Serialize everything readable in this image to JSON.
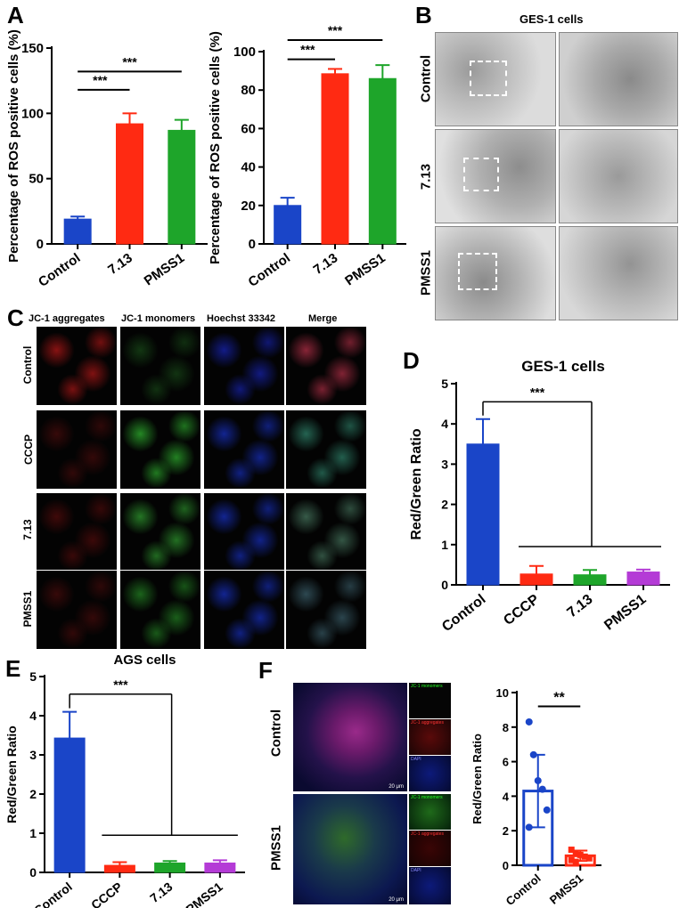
{
  "panels": {
    "A": "A",
    "B": "B",
    "C": "C",
    "D": "D",
    "E": "E",
    "F": "F"
  },
  "colors": {
    "blue": "#1a45c8",
    "red": "#ff2a12",
    "green": "#1ea52a",
    "purple": "#b43bd6"
  },
  "sig": {
    "three": "***",
    "two": "**"
  },
  "chart_data": [
    {
      "id": "A-left",
      "type": "bar",
      "categories": [
        "Control",
        "7.13",
        "PMSS1"
      ],
      "values": [
        19,
        92,
        87
      ],
      "errors": [
        2,
        8,
        8
      ],
      "ylabel": "Percentage of ROS positive cells (%)",
      "ylim": [
        0,
        150
      ],
      "yticks": [
        0,
        50,
        100,
        150
      ],
      "significance": [
        {
          "from": 0,
          "to": 1,
          "label": "***"
        },
        {
          "from": 0,
          "to": 2,
          "label": "***"
        }
      ]
    },
    {
      "id": "A-right",
      "type": "bar",
      "categories": [
        "Control",
        "7.13",
        "PMSS1"
      ],
      "values": [
        20,
        88.5,
        86
      ],
      "errors": [
        4,
        2.5,
        7
      ],
      "ylabel": "Percentage of ROS positive cells (%)",
      "ylim": [
        0,
        100
      ],
      "yticks": [
        0,
        20,
        40,
        60,
        80,
        100
      ],
      "significance": [
        {
          "from": 0,
          "to": 1,
          "label": "***"
        },
        {
          "from": 0,
          "to": 2,
          "label": "***"
        }
      ]
    },
    {
      "id": "D",
      "type": "bar",
      "title": "GES-1 cells",
      "categories": [
        "Control",
        "CCCP",
        "7.13",
        "PMSS1"
      ],
      "values": [
        3.5,
        0.27,
        0.25,
        0.32
      ],
      "errors": [
        0.62,
        0.2,
        0.12,
        0.06
      ],
      "ylabel": "Red/Green Ratio",
      "ylim": [
        0,
        5
      ],
      "yticks": [
        0,
        1,
        2,
        3,
        4,
        5
      ],
      "significance": [
        {
          "label": "***"
        }
      ]
    },
    {
      "id": "E",
      "type": "bar",
      "title": "AGS cells",
      "categories": [
        "Control",
        "CCCP",
        "7.13",
        "PMSS1"
      ],
      "values": [
        3.43,
        0.18,
        0.24,
        0.24
      ],
      "errors": [
        0.67,
        0.08,
        0.05,
        0.07
      ],
      "ylabel": "Red/Green Ratio",
      "ylim": [
        0,
        5
      ],
      "yticks": [
        0,
        1,
        2,
        3,
        4,
        5
      ],
      "significance": [
        {
          "label": "***"
        }
      ]
    },
    {
      "id": "F",
      "type": "bar",
      "categories": [
        "Control",
        "PMSS1"
      ],
      "values": [
        4.3,
        0.55
      ],
      "errors": [
        2.1,
        0.3
      ],
      "points": [
        [
          8.3,
          6.4,
          4.9,
          4.4,
          3.2,
          2.2
        ],
        [
          0.9,
          0.7,
          0.6,
          0.5,
          0.4,
          0.3,
          0.2
        ]
      ],
      "ylabel": "Red/Green Ratio",
      "ylim": [
        0,
        10
      ],
      "yticks": [
        0,
        2,
        4,
        6,
        8,
        10
      ],
      "significance": [
        {
          "label": "**"
        }
      ]
    }
  ],
  "panelB": {
    "title": "GES-1 cells",
    "rows": [
      "Control",
      "7.13",
      "PMSS1"
    ]
  },
  "panelC": {
    "columns": [
      "JC-1 aggregates",
      "JC-1 monomers",
      "Hoechst 33342",
      "Merge"
    ],
    "rows": [
      "Control",
      "CCCP",
      "7.13",
      "PMSS1"
    ]
  },
  "panelF": {
    "rows": [
      "Control",
      "PMSS1"
    ],
    "inset_labels": [
      "JC-1 monomers",
      "JC-1 aggregates",
      "DAPI"
    ],
    "scalebar": "20 μm"
  }
}
